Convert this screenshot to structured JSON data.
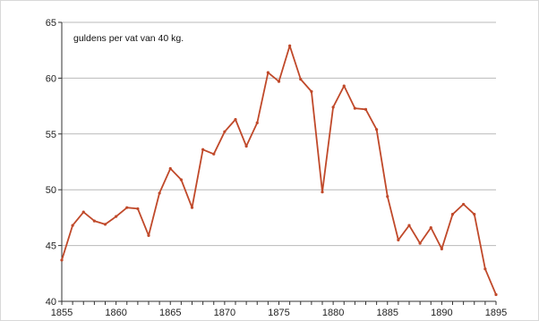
{
  "chart_data": {
    "type": "line",
    "annotation": "guldens per vat van 40 kg.",
    "xlabel": "",
    "ylabel": "",
    "xlim": [
      1855,
      1895
    ],
    "ylim": [
      40,
      65
    ],
    "x_ticks": [
      1855,
      1860,
      1865,
      1870,
      1875,
      1880,
      1885,
      1890,
      1895
    ],
    "y_ticks": [
      40,
      45,
      50,
      55,
      60,
      65
    ],
    "grid": "horizontal",
    "legend": "none",
    "line_color": "#c0492a",
    "grid_color": "#b9b9b9",
    "series": [
      {
        "x": [
          1855,
          1856,
          1857,
          1858,
          1859,
          1860,
          1861,
          1862,
          1863,
          1864,
          1865,
          1866,
          1867,
          1868,
          1869,
          1870,
          1871,
          1872,
          1873,
          1874,
          1875,
          1876,
          1877,
          1878,
          1879,
          1880,
          1881,
          1882,
          1883,
          1884,
          1885,
          1886,
          1887,
          1888,
          1889,
          1890,
          1891,
          1892,
          1893,
          1894,
          1895
        ],
        "values": [
          43.7,
          46.8,
          48.0,
          47.2,
          46.9,
          47.6,
          48.4,
          48.3,
          45.9,
          49.7,
          51.9,
          50.9,
          48.4,
          53.6,
          53.2,
          55.2,
          56.3,
          53.9,
          56.0,
          60.5,
          59.7,
          62.9,
          59.9,
          58.8,
          49.8,
          57.4,
          59.3,
          57.3,
          57.2,
          55.4,
          49.4,
          45.5,
          46.8,
          45.2,
          46.6,
          44.7,
          47.8,
          48.7,
          47.8,
          42.9,
          40.6
        ]
      }
    ]
  }
}
